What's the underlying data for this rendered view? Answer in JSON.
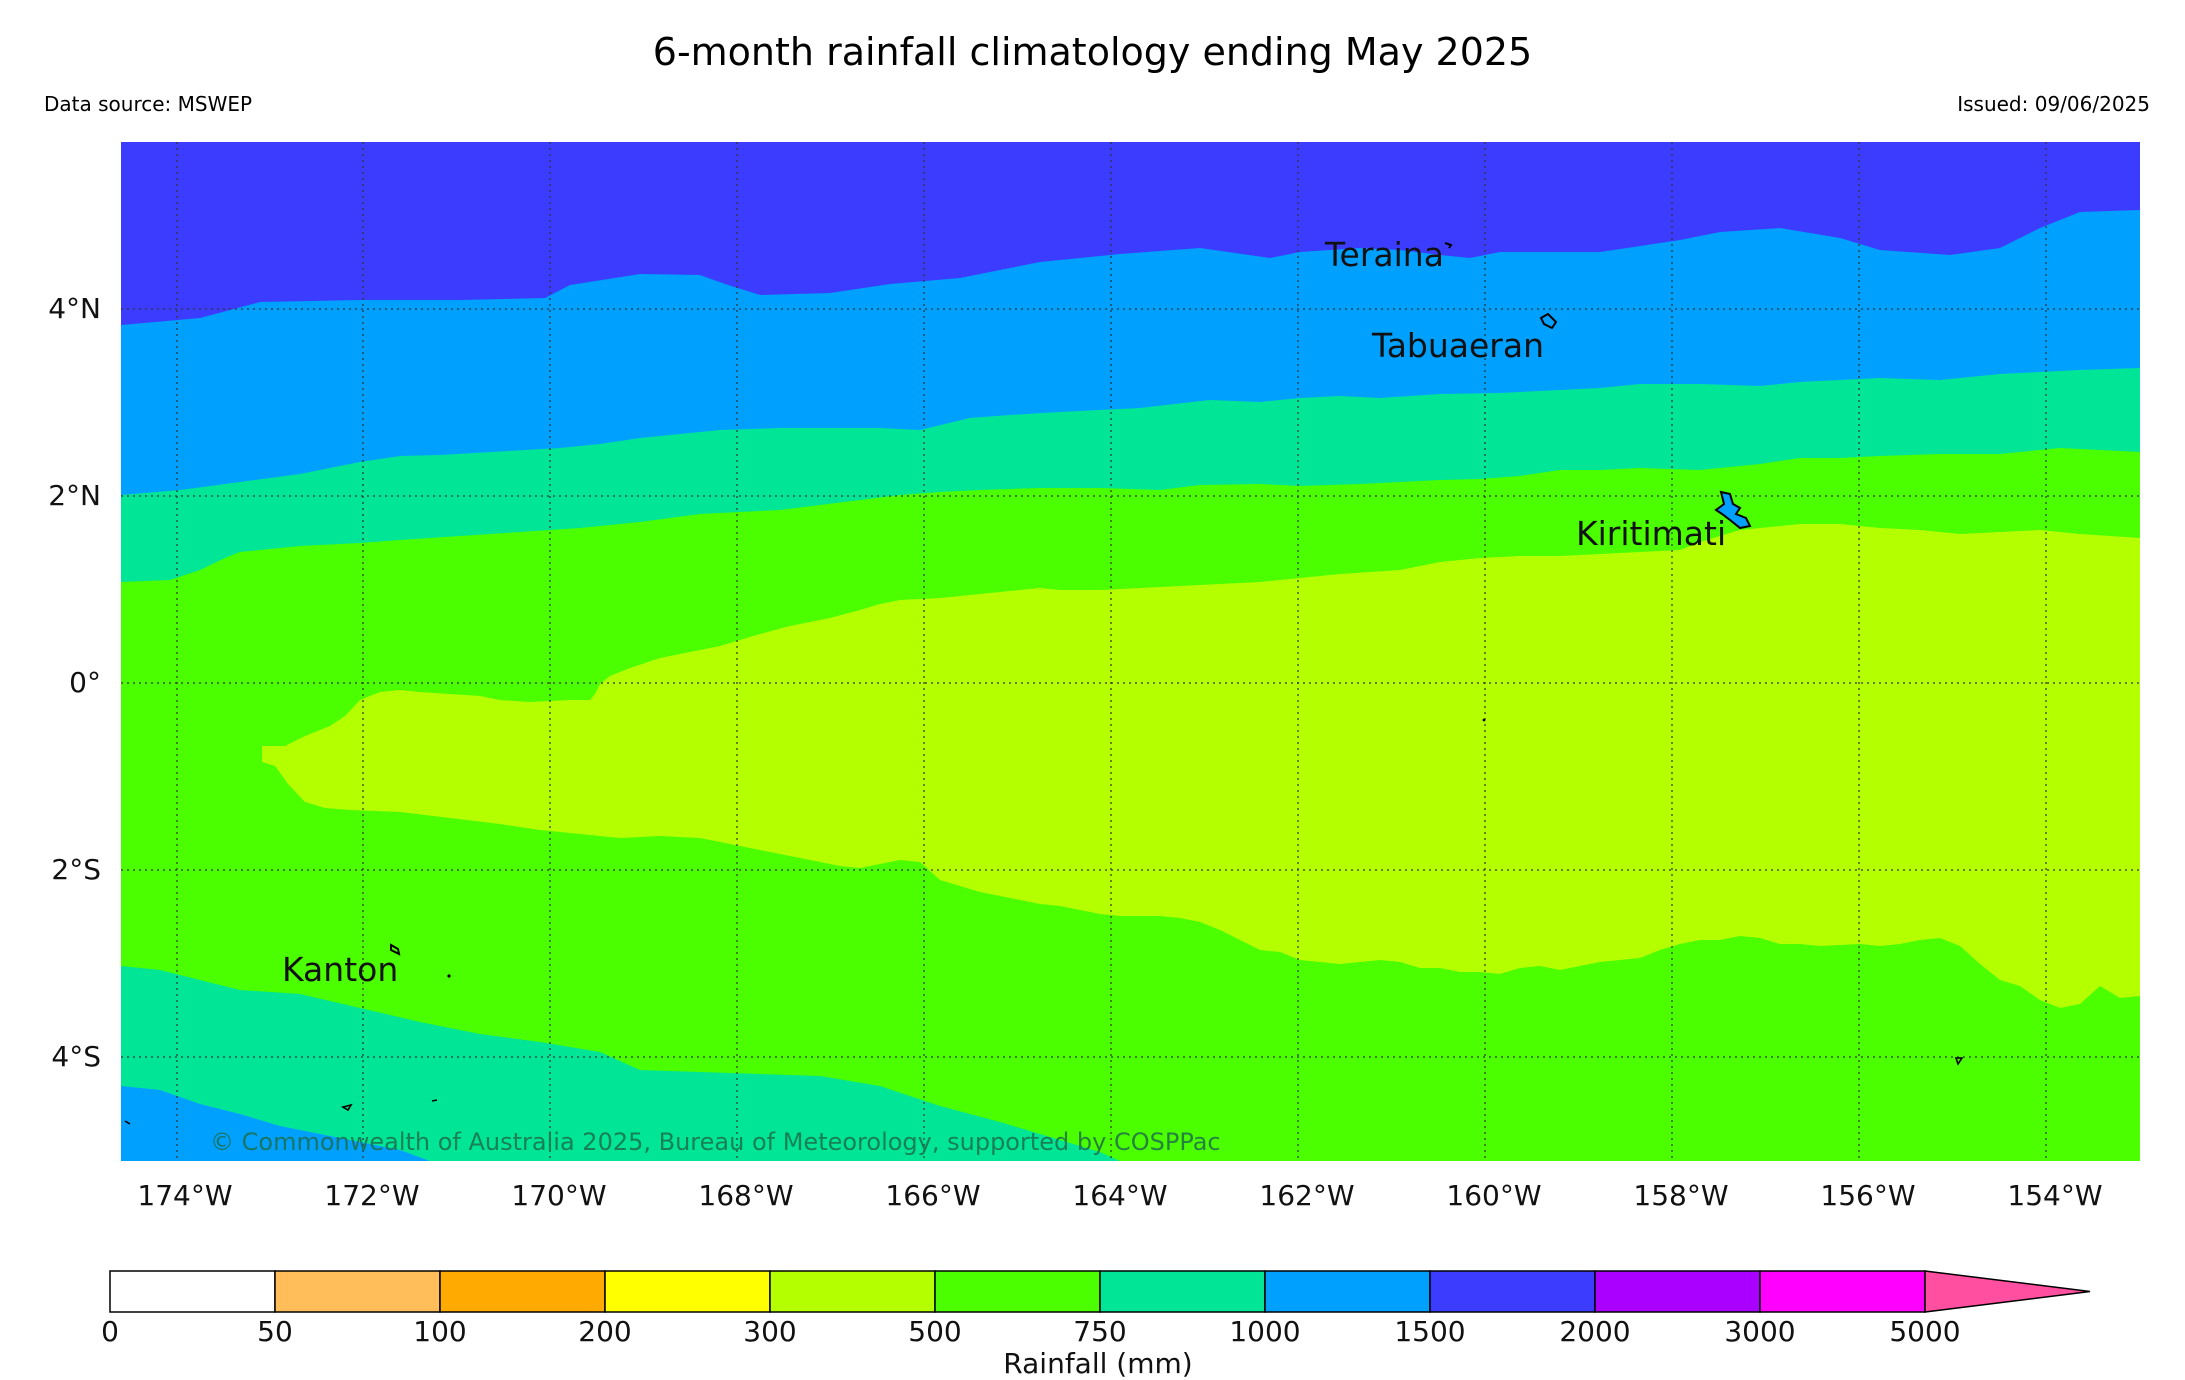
{
  "header": {
    "title": "6-month rainfall climatology ending May 2025",
    "source": "Data source: MSWEP",
    "issued": "Issued: 09/06/2025"
  },
  "map": {
    "lon_labels": [
      "174°W",
      "172°W",
      "170°W",
      "168°W",
      "166°W",
      "164°W",
      "162°W",
      "160°W",
      "158°W",
      "156°W",
      "154°W"
    ],
    "lat_labels": [
      "4°N",
      "2°N",
      "0°",
      "2°S",
      "4°S"
    ],
    "places": {
      "teraina": "Teraina",
      "tabuaeran": "Tabuaeran",
      "kiritimati": "Kiritimati",
      "kanton": "Kanton"
    },
    "copyright": "© Commonwealth of Australia 2025, Bureau of Meteorology, supported by COSPPac",
    "zone_colors": {
      "1500-2000": "#3c3cff",
      "1000-1500": "#00a0ff",
      "750-1000": "#00e696",
      "500-750": "#4bff00",
      "300-500": "#b4ff00"
    }
  },
  "colorbar": {
    "label": "Rainfall (mm)",
    "ticks": [
      "0",
      "50",
      "100",
      "200",
      "300",
      "500",
      "750",
      "1000",
      "1500",
      "2000",
      "3000",
      "5000"
    ],
    "colors": [
      "#ffffff",
      "#ffbe5a",
      "#ffaa00",
      "#ffff00",
      "#b4ff00",
      "#4bff00",
      "#00e696",
      "#00a0ff",
      "#3c3cff",
      "#aa00ff",
      "#ff00ff"
    ],
    "extend_color": "#ff4fa0"
  }
}
